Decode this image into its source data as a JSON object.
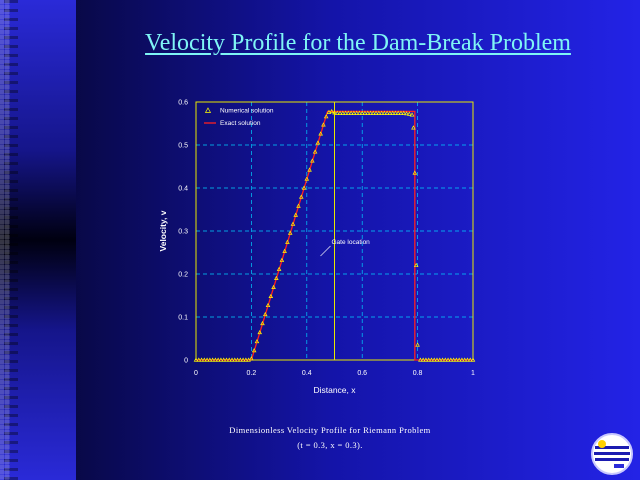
{
  "slide": {
    "title": "Velocity Profile for the Dam-Break Problem",
    "caption_line1": "Dimensionless Velocity Profile for Riemann Problem",
    "caption_line2": "(t = 0.3, x  = 0.3)."
  },
  "colors": {
    "title": "#7ff5f5",
    "plot_frame": "#e8e800",
    "grid": "#00d0ff",
    "exact_line": "#ff2020",
    "numerical_marker": "#ffff00",
    "text": "#ffffff"
  },
  "chart_data": {
    "type": "line",
    "title": "",
    "xlabel": "Distance, x",
    "ylabel": "Velocity, v",
    "xlim": [
      0,
      1
    ],
    "ylim": [
      0,
      0.6
    ],
    "xticks": [
      "0",
      "0.2",
      "0.4",
      "0.6",
      "0.8",
      "1"
    ],
    "yticks": [
      "0",
      "0.1",
      "0.2",
      "0.3",
      "0.4",
      "0.5",
      "0.6"
    ],
    "grid": true,
    "legend": {
      "placement": "top-left",
      "entries": [
        "Numerical solution",
        "Exact solution"
      ]
    },
    "annotation": {
      "text": "Gate location",
      "x": 0.5
    },
    "series": [
      {
        "name": "Exact solution",
        "style": "line",
        "x": [
          0,
          0.2,
          0.475,
          0.79,
          0.79,
          1.0
        ],
        "y": [
          0,
          0,
          0.578,
          0.578,
          0,
          0
        ]
      },
      {
        "name": "Numerical solution",
        "style": "marker",
        "x": [
          0,
          0.01,
          0.02,
          0.03,
          0.04,
          0.05,
          0.06,
          0.07,
          0.08,
          0.09,
          0.1,
          0.11,
          0.12,
          0.13,
          0.14,
          0.15,
          0.16,
          0.17,
          0.18,
          0.19,
          0.2,
          0.21,
          0.22,
          0.23,
          0.24,
          0.25,
          0.26,
          0.27,
          0.28,
          0.29,
          0.3,
          0.31,
          0.32,
          0.33,
          0.34,
          0.35,
          0.36,
          0.37,
          0.38,
          0.39,
          0.4,
          0.41,
          0.42,
          0.43,
          0.44,
          0.45,
          0.46,
          0.47,
          0.48,
          0.49,
          0.5,
          0.51,
          0.52,
          0.53,
          0.54,
          0.55,
          0.56,
          0.57,
          0.58,
          0.59,
          0.6,
          0.61,
          0.62,
          0.63,
          0.64,
          0.65,
          0.66,
          0.67,
          0.68,
          0.69,
          0.7,
          0.71,
          0.72,
          0.73,
          0.74,
          0.75,
          0.76,
          0.77,
          0.78,
          0.785,
          0.79,
          0.795,
          0.8,
          0.81,
          0.82,
          0.83,
          0.84,
          0.85,
          0.86,
          0.87,
          0.88,
          0.89,
          0.9,
          0.91,
          0.92,
          0.93,
          0.94,
          0.95,
          0.96,
          0.97,
          0.98,
          0.99,
          1.0
        ],
        "y": [
          0,
          0,
          0,
          0,
          0,
          0,
          0,
          0,
          0,
          0,
          0,
          0,
          0,
          0,
          0,
          0,
          0,
          0,
          0,
          0,
          0.003,
          0.022,
          0.043,
          0.064,
          0.085,
          0.106,
          0.127,
          0.148,
          0.169,
          0.19,
          0.211,
          0.232,
          0.253,
          0.274,
          0.295,
          0.316,
          0.337,
          0.358,
          0.379,
          0.4,
          0.421,
          0.442,
          0.463,
          0.484,
          0.505,
          0.526,
          0.547,
          0.566,
          0.576,
          0.578,
          0.575,
          0.574,
          0.574,
          0.574,
          0.574,
          0.574,
          0.574,
          0.574,
          0.574,
          0.574,
          0.574,
          0.574,
          0.574,
          0.574,
          0.574,
          0.574,
          0.574,
          0.574,
          0.574,
          0.574,
          0.574,
          0.574,
          0.574,
          0.574,
          0.574,
          0.574,
          0.573,
          0.572,
          0.57,
          0.54,
          0.435,
          0.22,
          0.035,
          0,
          0,
          0,
          0,
          0,
          0,
          0,
          0,
          0,
          0,
          0,
          0,
          0,
          0,
          0,
          0,
          0,
          0,
          0,
          0
        ]
      }
    ]
  }
}
